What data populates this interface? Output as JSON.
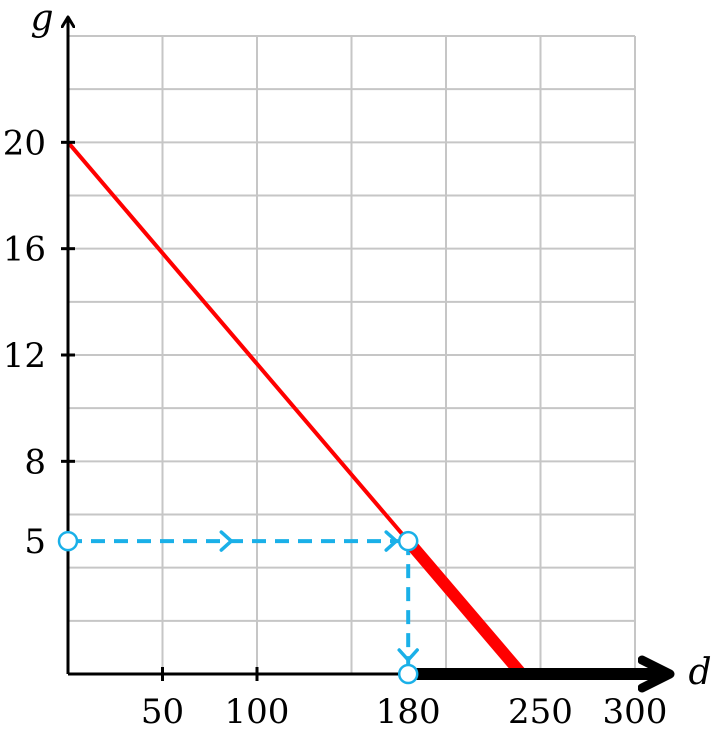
{
  "chart_data": {
    "type": "line",
    "title": "",
    "xlabel": "d",
    "ylabel": "g",
    "xlim": [
      0,
      300
    ],
    "ylim": [
      0,
      24
    ],
    "grid": true,
    "x_ticks": [
      50,
      100,
      180,
      250,
      300
    ],
    "y_ticks": [
      20,
      16,
      12,
      8,
      5
    ],
    "x_grid": [
      50,
      100,
      150,
      200,
      250,
      300
    ],
    "y_grid": [
      2,
      4,
      6,
      8,
      10,
      12,
      14,
      16,
      18,
      20,
      22,
      24
    ],
    "series": [
      {
        "color": "#ff0000",
        "x": [
          0,
          240
        ],
        "y": [
          20,
          0
        ]
      }
    ],
    "highlight_segment": {
      "x": [
        180,
        240
      ],
      "y": [
        5,
        0
      ],
      "color": "#ff0000"
    },
    "solution_ray": {
      "x": [
        180,
        300
      ],
      "y": [
        0,
        0
      ],
      "color": "#000000"
    },
    "guide": {
      "color": "#1ab0e8",
      "points": [
        {
          "x": 0,
          "y": 5
        },
        {
          "x": 180,
          "y": 5
        },
        {
          "x": 180,
          "y": 0
        }
      ]
    },
    "highlighted_ticks": {
      "x": "180",
      "y": "5",
      "color": "#0000ff"
    },
    "colors": {
      "line": "#ff0000",
      "guide": "#1ab0e8",
      "highlight_label": "#0000ff",
      "grid": "#c6c6c6",
      "axis": "#000000"
    }
  }
}
